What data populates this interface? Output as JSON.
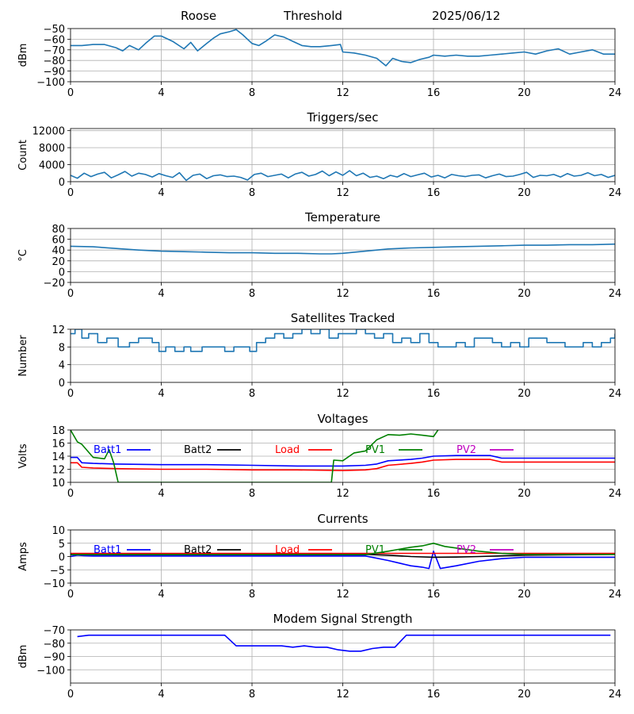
{
  "header": {
    "site": "Roose",
    "mode": "Threshold",
    "date": "2025/06/12"
  },
  "chart_data": [
    {
      "id": "threshold",
      "type": "line",
      "title": "",
      "ylabel": "dBm",
      "xlim": [
        0,
        24
      ],
      "ylim": [
        -100,
        -50
      ],
      "xticks": [
        0,
        4,
        8,
        12,
        16,
        20,
        24
      ],
      "yticks": [
        -100,
        -90,
        -80,
        -70,
        -60,
        -50
      ],
      "grid": true,
      "series": [
        {
          "color": "#1f77b4",
          "x": [
            0,
            0.5,
            1,
            1.5,
            2,
            2.3,
            2.6,
            3,
            3.3,
            3.7,
            4,
            4.5,
            5,
            5.3,
            5.6,
            6,
            6.3,
            6.6,
            7,
            7.3,
            7.6,
            8,
            8.3,
            8.6,
            9,
            9.4,
            9.8,
            10.2,
            10.6,
            11,
            11.5,
            11.9,
            12,
            12.5,
            13,
            13.5,
            13.9,
            14.2,
            14.6,
            15,
            15.4,
            15.8,
            16,
            16.5,
            17,
            17.5,
            18,
            18.5,
            19,
            19.5,
            20,
            20.5,
            21,
            21.5,
            22,
            22.5,
            23,
            23.5,
            24
          ],
          "y": [
            -66,
            -66,
            -65,
            -65,
            -68,
            -71,
            -66,
            -70,
            -64,
            -57,
            -57,
            -62,
            -69,
            -63,
            -71,
            -64,
            -59,
            -55,
            -53,
            -51,
            -56,
            -64,
            -66,
            -62,
            -56,
            -58,
            -62,
            -66,
            -67,
            -67,
            -66,
            -65,
            -72,
            -73,
            -75,
            -78,
            -85,
            -78,
            -81,
            -82,
            -79,
            -77,
            -75,
            -76,
            -75,
            -76,
            -76,
            -75,
            -74,
            -73,
            -72,
            -74,
            -71,
            -69,
            -74,
            -72,
            -70,
            -74,
            -74
          ]
        }
      ]
    },
    {
      "id": "triggers",
      "type": "line",
      "title": "Triggers/sec",
      "ylabel": "Count",
      "xlim": [
        0,
        24
      ],
      "ylim": [
        0,
        12500
      ],
      "xticks": [
        0,
        4,
        8,
        12,
        16,
        20,
        24
      ],
      "yticks": [
        0,
        4000,
        8000,
        12000
      ],
      "grid": true,
      "series": [
        {
          "color": "#1f77b4",
          "x": [
            0,
            0.3,
            0.6,
            0.9,
            1.2,
            1.5,
            1.8,
            2.1,
            2.4,
            2.7,
            3,
            3.3,
            3.6,
            3.9,
            4.2,
            4.5,
            4.8,
            5.1,
            5.4,
            5.7,
            6,
            6.3,
            6.6,
            6.9,
            7.2,
            7.5,
            7.8,
            8.1,
            8.4,
            8.7,
            9,
            9.3,
            9.6,
            9.9,
            10.2,
            10.5,
            10.8,
            11.1,
            11.4,
            11.7,
            12,
            12.3,
            12.6,
            12.9,
            13.2,
            13.5,
            13.8,
            14.1,
            14.4,
            14.7,
            15,
            15.3,
            15.6,
            15.9,
            16.2,
            16.5,
            16.8,
            17.1,
            17.4,
            17.7,
            18,
            18.3,
            18.6,
            18.9,
            19.2,
            19.5,
            19.8,
            20.1,
            20.4,
            20.7,
            21,
            21.3,
            21.6,
            21.9,
            22.2,
            22.5,
            22.8,
            23.1,
            23.4,
            23.7,
            24
          ],
          "y": [
            1500,
            800,
            2000,
            1200,
            1800,
            2200,
            900,
            1600,
            2400,
            1300,
            2000,
            1700,
            1100,
            1900,
            1400,
            1000,
            2100,
            300,
            1500,
            1800,
            700,
            1400,
            1600,
            1200,
            1300,
            1000,
            400,
            1700,
            2000,
            1200,
            1500,
            1800,
            900,
            1800,
            2200,
            1300,
            1700,
            2500,
            1400,
            2300,
            1500,
            2600,
            1400,
            2000,
            1000,
            1300,
            700,
            1500,
            1100,
            1900,
            1200,
            1600,
            2000,
            1100,
            1500,
            900,
            1700,
            1400,
            1200,
            1500,
            1600,
            900,
            1400,
            1800,
            1200,
            1300,
            1700,
            2200,
            1000,
            1500,
            1400,
            1700,
            1100,
            1900,
            1300,
            1500,
            2100,
            1400,
            1700,
            1000,
            1500
          ]
        }
      ]
    },
    {
      "id": "temperature",
      "type": "line",
      "title": "Temperature",
      "ylabel": "°C",
      "xlim": [
        0,
        24
      ],
      "ylim": [
        -20,
        80
      ],
      "xticks": [
        0,
        4,
        8,
        12,
        16,
        20,
        24
      ],
      "yticks": [
        -20,
        0,
        20,
        40,
        60,
        80
      ],
      "grid": true,
      "series": [
        {
          "color": "#1f77b4",
          "x": [
            0,
            1,
            2,
            3,
            4,
            5,
            6,
            7,
            8,
            9,
            10,
            11,
            11.5,
            12,
            13,
            14,
            15,
            16,
            17,
            18,
            19,
            20,
            21,
            22,
            23,
            24
          ],
          "y": [
            47,
            46,
            43,
            40,
            38,
            37,
            36,
            35,
            35,
            34,
            34,
            33,
            33,
            34,
            38,
            42,
            44,
            45,
            46,
            47,
            48,
            49,
            49,
            50,
            50,
            51
          ]
        }
      ]
    },
    {
      "id": "satellites",
      "type": "line",
      "title": "Satellites Tracked",
      "ylabel": "Number",
      "xlim": [
        0,
        24
      ],
      "ylim": [
        0,
        12
      ],
      "xticks": [
        0,
        4,
        8,
        12,
        16,
        20,
        24
      ],
      "yticks": [
        0,
        4,
        8,
        12
      ],
      "grid": true,
      "step": true,
      "series": [
        {
          "color": "#1f77b4",
          "x": [
            0,
            0.2,
            0.5,
            0.8,
            1.2,
            1.6,
            2.1,
            2.6,
            3,
            3.6,
            3.9,
            4.2,
            4.6,
            5,
            5.3,
            5.8,
            6.4,
            6.8,
            7.2,
            7.6,
            7.9,
            8.2,
            8.6,
            9,
            9.4,
            9.8,
            10.2,
            10.6,
            11,
            11.4,
            11.8,
            12.2,
            12.6,
            13,
            13.4,
            13.8,
            14.2,
            14.6,
            15,
            15.4,
            15.8,
            16.2,
            16.6,
            17,
            17.4,
            17.8,
            18.2,
            18.6,
            19,
            19.4,
            19.8,
            20.2,
            20.6,
            21,
            21.4,
            21.8,
            22.2,
            22.6,
            23,
            23.4,
            23.8,
            24
          ],
          "y": [
            11,
            12,
            10,
            11,
            9,
            10,
            8,
            9,
            10,
            9,
            7,
            8,
            7,
            8,
            7,
            8,
            8,
            7,
            8,
            8,
            7,
            9,
            10,
            11,
            10,
            11,
            12,
            11,
            12,
            10,
            11,
            11,
            12,
            11,
            10,
            11,
            9,
            10,
            9,
            11,
            9,
            8,
            8,
            9,
            8,
            10,
            10,
            9,
            8,
            9,
            8,
            10,
            10,
            9,
            9,
            8,
            8,
            9,
            8,
            9,
            10,
            11
          ]
        }
      ]
    },
    {
      "id": "voltages",
      "type": "line",
      "title": "Voltages",
      "ylabel": "Volts",
      "xlim": [
        0,
        24
      ],
      "ylim": [
        10,
        18
      ],
      "xticks": [
        0,
        4,
        8,
        12,
        16,
        20,
        24
      ],
      "yticks": [
        10,
        12,
        14,
        16,
        18
      ],
      "grid": true,
      "legend": [
        "Batt1",
        "Batt2",
        "Load",
        "PV1",
        "PV2"
      ],
      "series": [
        {
          "name": "Batt1",
          "color": "#0000ff",
          "x": [
            0,
            0.3,
            0.5,
            1,
            2,
            4,
            6,
            8,
            10,
            12,
            13,
            13.5,
            14,
            15,
            15.5,
            16,
            17,
            18,
            18.5,
            19,
            20,
            22,
            24
          ],
          "y": [
            13.8,
            13.8,
            13.0,
            12.9,
            12.8,
            12.7,
            12.7,
            12.6,
            12.5,
            12.5,
            12.6,
            12.8,
            13.3,
            13.5,
            13.7,
            14.0,
            14.1,
            14.1,
            14.1,
            13.7,
            13.7,
            13.7,
            13.7
          ]
        },
        {
          "name": "Load",
          "color": "#ff0000",
          "x": [
            0,
            0.3,
            0.5,
            1,
            2,
            4,
            6,
            8,
            10,
            12,
            13,
            13.5,
            14,
            15,
            15.5,
            16,
            17,
            18,
            18.5,
            19,
            20,
            22,
            24
          ],
          "y": [
            13.0,
            13.0,
            12.3,
            12.2,
            12.1,
            12.0,
            12.0,
            11.9,
            11.9,
            11.8,
            11.9,
            12.1,
            12.6,
            12.9,
            13.1,
            13.4,
            13.5,
            13.5,
            13.5,
            13.1,
            13.1,
            13.1,
            13.1
          ]
        },
        {
          "name": "PV1",
          "color": "#008000",
          "x": [
            0,
            0.3,
            0.5,
            1,
            1.5,
            1.7,
            1.9,
            2.1,
            11.5,
            11.6,
            12,
            12.5,
            13,
            13.5,
            14,
            14.5,
            15,
            15.5,
            16,
            16.2
          ],
          "y": [
            18.0,
            16.2,
            15.8,
            13.8,
            13.6,
            15.0,
            13.0,
            10.0,
            10.0,
            13.4,
            13.3,
            14.5,
            14.8,
            16.5,
            17.3,
            17.2,
            17.4,
            17.2,
            17.0,
            18.0
          ]
        }
      ]
    },
    {
      "id": "currents",
      "type": "line",
      "title": "Currents",
      "ylabel": "Amps",
      "xlim": [
        0,
        24
      ],
      "ylim": [
        -10,
        10
      ],
      "xticks": [
        0,
        4,
        8,
        12,
        16,
        20,
        24
      ],
      "yticks": [
        -10,
        -5,
        0,
        5,
        10
      ],
      "grid": true,
      "legend": [
        "Batt1",
        "Batt2",
        "Load",
        "PV1",
        "PV2"
      ],
      "series": [
        {
          "name": "Batt1",
          "color": "#0000ff",
          "x": [
            0,
            0.3,
            0.6,
            1,
            4,
            8,
            12,
            13,
            14,
            15,
            15.5,
            15.8,
            16,
            16.3,
            17,
            18,
            19,
            20,
            22,
            24
          ],
          "y": [
            0,
            0.5,
            0.3,
            0.2,
            0.2,
            0.2,
            0.2,
            0.2,
            -1.5,
            -3.5,
            -4,
            -4.5,
            2,
            -4.5,
            -3.5,
            -1.8,
            -0.8,
            -0.3,
            -0.3,
            -0.3
          ]
        },
        {
          "name": "Batt2",
          "color": "#000000",
          "x": [
            0,
            4,
            8,
            12,
            13,
            14,
            15,
            16,
            17,
            18,
            20,
            24
          ],
          "y": [
            0.8,
            0.8,
            0.8,
            0.8,
            0.8,
            0.5,
            0,
            -0.3,
            -0.2,
            0,
            0.5,
            0.8
          ]
        },
        {
          "name": "Load",
          "color": "#ff0000",
          "x": [
            0,
            4,
            8,
            12,
            16,
            20,
            24
          ],
          "y": [
            1.2,
            1.2,
            1.2,
            1.2,
            1.2,
            1.2,
            1.2
          ]
        },
        {
          "name": "PV1",
          "color": "#008000",
          "x": [
            0,
            4,
            8,
            12,
            13,
            14,
            15,
            15.5,
            16,
            16.5,
            17,
            18,
            19,
            20,
            24
          ],
          "y": [
            0.7,
            0.7,
            0.7,
            0.7,
            0.7,
            2,
            3.5,
            4,
            5,
            3.8,
            3.2,
            2,
            1.2,
            0.8,
            0.8
          ]
        }
      ]
    },
    {
      "id": "modem",
      "type": "line",
      "title": "Modem Signal Strength",
      "ylabel": "dBm",
      "xlim": [
        0,
        24
      ],
      "ylim": [
        -110,
        -70
      ],
      "xticks": [
        0,
        4,
        8,
        12,
        16,
        20,
        24
      ],
      "yticks": [
        -100,
        -90,
        -80,
        -70
      ],
      "grid": true,
      "series": [
        {
          "color": "#0000ff",
          "x": [
            0.3,
            0.8,
            2,
            4,
            6,
            6.8,
            7.3,
            8,
            9.3,
            9.8,
            10.3,
            10.8,
            11.3,
            11.8,
            12.3,
            12.8,
            13.3,
            13.8,
            14.3,
            14.8,
            16,
            18,
            20,
            22,
            23.8
          ],
          "y": [
            -75,
            -74,
            -74,
            -74,
            -74,
            -74,
            -82,
            -82,
            -82,
            -83,
            -82,
            -83,
            -83,
            -85,
            -86,
            -86,
            -84,
            -83,
            -83,
            -74,
            -74,
            -74,
            -74,
            -74,
            -74
          ]
        }
      ]
    }
  ]
}
